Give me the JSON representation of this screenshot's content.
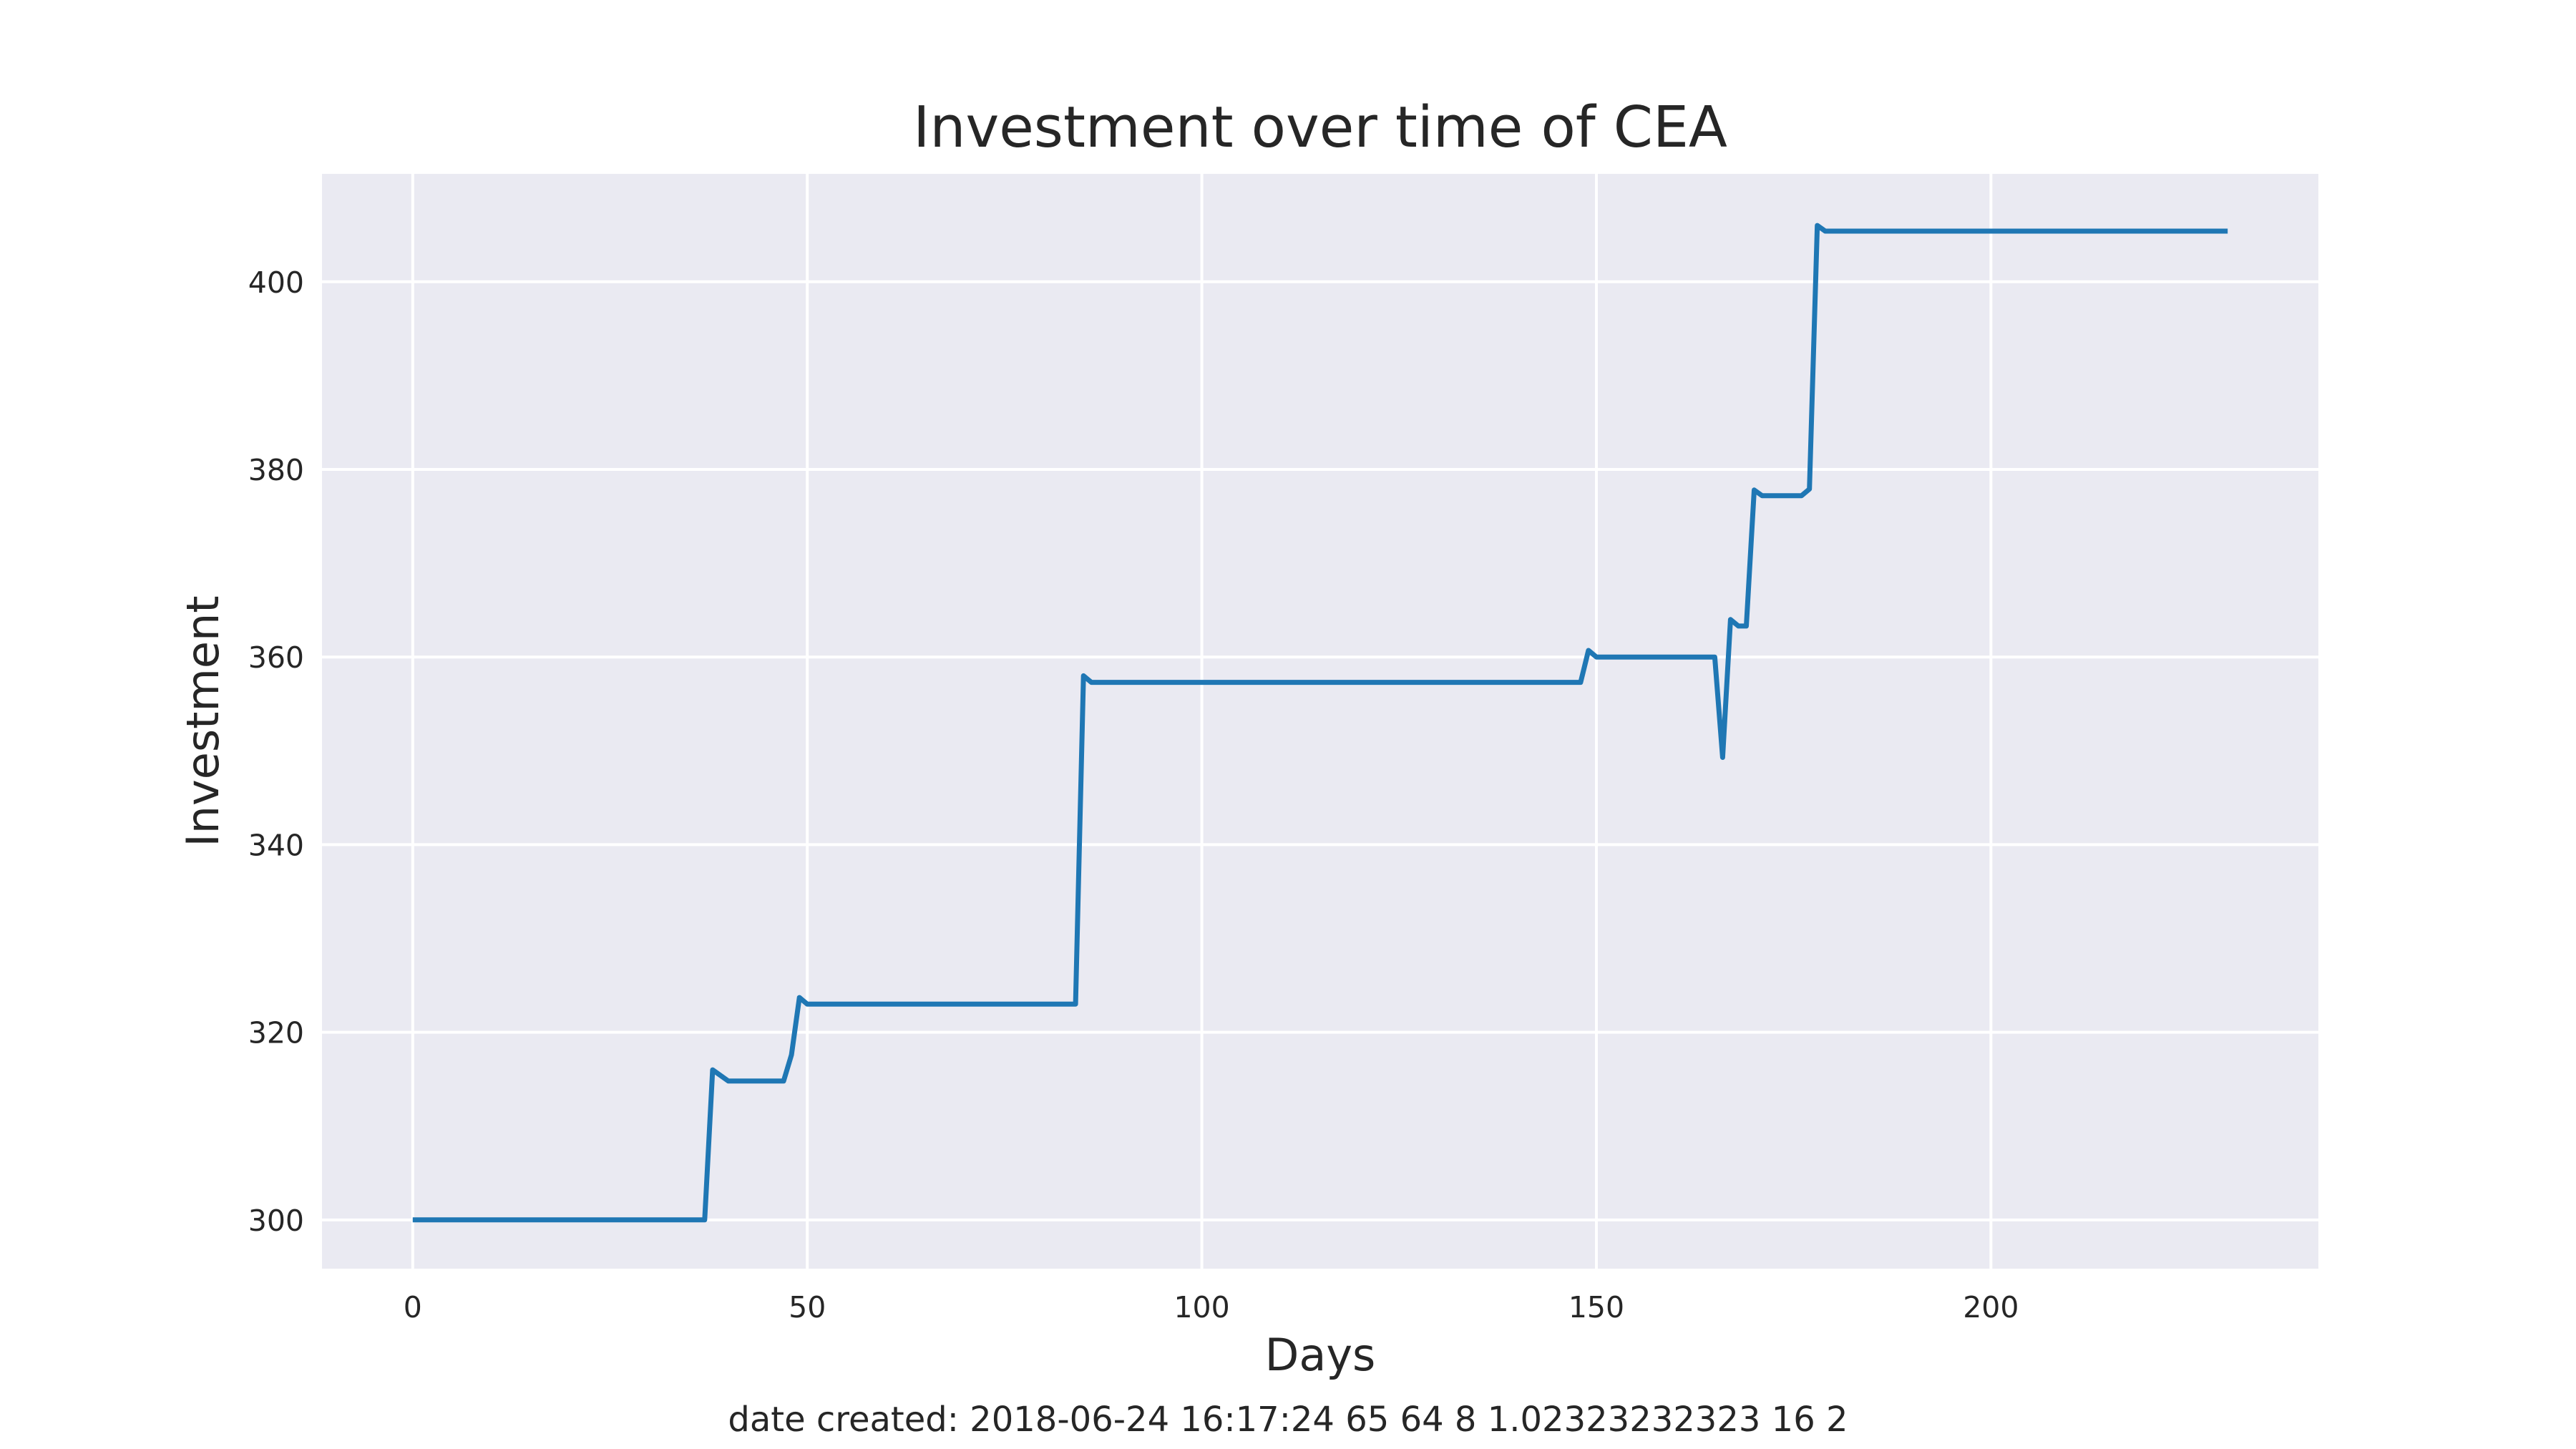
{
  "chart_data": {
    "type": "line",
    "title": "Investment over time of CEA",
    "xlabel": "Days",
    "ylabel": "Investment",
    "xlim": [
      -11.5,
      241.5
    ],
    "ylim": [
      294.8,
      411.5
    ],
    "xticks": [
      0,
      50,
      100,
      150,
      200
    ],
    "yticks": [
      300,
      320,
      340,
      360,
      380,
      400
    ],
    "grid": true,
    "style": "seaborn-darkgrid",
    "colors": {
      "background": "#eaeaf2",
      "grid": "#ffffff",
      "line": "#1f77b4",
      "text": "#262626"
    },
    "series": [
      {
        "x": [
          0,
          37,
          38,
          40,
          47,
          48,
          49,
          50,
          84,
          85,
          86,
          148,
          149,
          150,
          165,
          166,
          167,
          168,
          169,
          170,
          171,
          176,
          177,
          178,
          179,
          230
        ],
        "y": [
          300,
          300,
          316,
          314.8,
          314.8,
          317.6,
          323.7,
          323,
          323,
          358,
          357.3,
          357.3,
          360.7,
          360,
          360,
          349.3,
          364,
          363.3,
          363.3,
          377.8,
          377.2,
          377.2,
          377.9,
          406,
          405.4,
          405.4
        ]
      }
    ]
  },
  "footer": "date created: 2018-06-24 16:17:24 65 64 8 1.02323232323 16 2"
}
